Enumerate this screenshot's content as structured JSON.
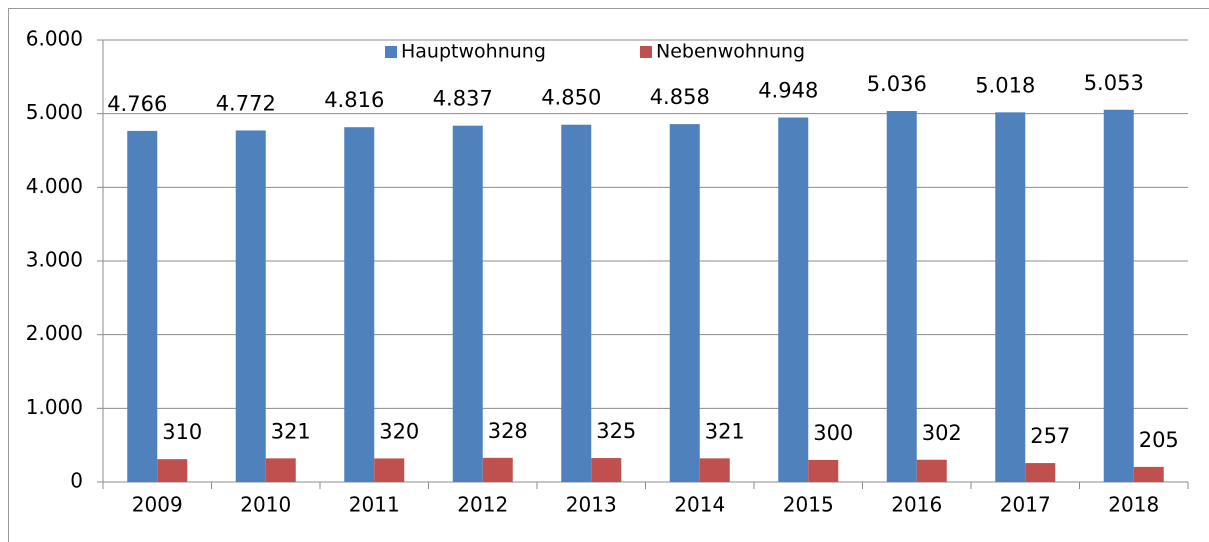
{
  "chart_data": {
    "type": "bar",
    "categories": [
      "2009",
      "2010",
      "2011",
      "2012",
      "2013",
      "2014",
      "2015",
      "2016",
      "2017",
      "2018"
    ],
    "series": [
      {
        "name": "Hauptwohnung",
        "color": "#4f81bd",
        "values": [
          4766,
          4772,
          4816,
          4837,
          4850,
          4858,
          4948,
          5036,
          5018,
          5053
        ],
        "value_labels": [
          "4.766",
          "4.772",
          "4.816",
          "4.837",
          "4.850",
          "4.858",
          "4.948",
          "5.036",
          "5.018",
          "5.053"
        ]
      },
      {
        "name": "Nebenwohnung",
        "color": "#c0504d",
        "values": [
          310,
          321,
          320,
          328,
          325,
          321,
          300,
          302,
          257,
          205
        ],
        "value_labels": [
          "310",
          "321",
          "320",
          "328",
          "325",
          "321",
          "300",
          "302",
          "257",
          "205"
        ]
      }
    ],
    "ylim": [
      0,
      6000
    ],
    "yticks": [
      0,
      {
        "value": 1000,
        "label": "1.000"
      },
      {
        "value": 2000,
        "label": "2.000"
      },
      {
        "value": 3000,
        "label": "3.000"
      },
      {
        "value": 4000,
        "label": "4.000"
      },
      {
        "value": 5000,
        "label": "5.000"
      },
      {
        "value": 6000,
        "label": "6.000"
      }
    ],
    "grid": true,
    "legend": "top"
  }
}
